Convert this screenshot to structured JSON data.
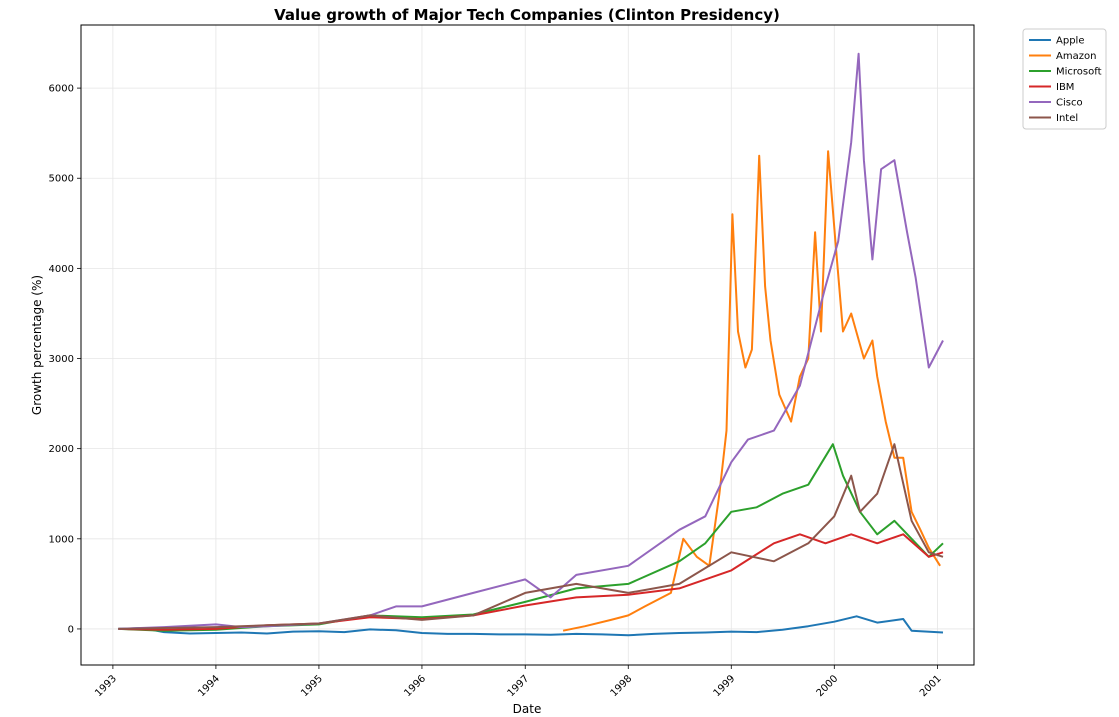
{
  "chart_data": {
    "type": "line",
    "title": "Value growth of Major Tech Companies (Clinton Presidency)",
    "xlabel": "Date",
    "ylabel": "Growth percentage (%)",
    "x_type": "date",
    "xlim": [
      "1992-09-10",
      "2001-05-10"
    ],
    "ylim": [
      -400,
      6700
    ],
    "xticks": [
      "1993-01-01",
      "1994-01-01",
      "1995-01-01",
      "1996-01-01",
      "1997-01-01",
      "1998-01-01",
      "1999-01-01",
      "2000-01-01",
      "2001-01-01"
    ],
    "xtick_labels": [
      "1993",
      "1994",
      "1995",
      "1996",
      "1997",
      "1998",
      "1999",
      "2000",
      "2001"
    ],
    "yticks": [
      0,
      1000,
      2000,
      3000,
      4000,
      5000,
      6000
    ],
    "ytick_labels": [
      "0",
      "1000",
      "2000",
      "3000",
      "4000",
      "5000",
      "6000"
    ],
    "grid": true,
    "legend_position": "outside upper right",
    "series": [
      {
        "name": "Apple",
        "color": "#1f77b4",
        "points": [
          [
            "1993-01-20",
            0
          ],
          [
            "1993-04-15",
            10
          ],
          [
            "1993-07-01",
            -35
          ],
          [
            "1993-10-01",
            -50
          ],
          [
            "1994-01-01",
            -45
          ],
          [
            "1994-04-01",
            -40
          ],
          [
            "1994-07-01",
            -50
          ],
          [
            "1994-10-01",
            -30
          ],
          [
            "1995-01-01",
            -25
          ],
          [
            "1995-04-01",
            -35
          ],
          [
            "1995-07-01",
            -5
          ],
          [
            "1995-10-01",
            -15
          ],
          [
            "1996-01-01",
            -45
          ],
          [
            "1996-04-01",
            -55
          ],
          [
            "1996-07-01",
            -55
          ],
          [
            "1996-10-01",
            -60
          ],
          [
            "1997-01-01",
            -60
          ],
          [
            "1997-04-01",
            -65
          ],
          [
            "1997-07-01",
            -55
          ],
          [
            "1997-10-01",
            -60
          ],
          [
            "1998-01-01",
            -70
          ],
          [
            "1998-04-01",
            -55
          ],
          [
            "1998-07-01",
            -45
          ],
          [
            "1998-10-01",
            -40
          ],
          [
            "1999-01-01",
            -30
          ],
          [
            "1999-04-01",
            -35
          ],
          [
            "1999-07-01",
            -10
          ],
          [
            "1999-10-01",
            30
          ],
          [
            "2000-01-01",
            80
          ],
          [
            "2000-03-20",
            140
          ],
          [
            "2000-06-01",
            70
          ],
          [
            "2000-09-01",
            110
          ],
          [
            "2000-10-01",
            -20
          ],
          [
            "2001-01-20",
            -40
          ]
        ]
      },
      {
        "name": "Amazon",
        "color": "#ff7f0e",
        "points": [
          [
            "1997-05-15",
            -20
          ],
          [
            "1997-08-01",
            30
          ],
          [
            "1997-11-01",
            100
          ],
          [
            "1998-01-01",
            150
          ],
          [
            "1998-03-01",
            250
          ],
          [
            "1998-06-01",
            400
          ],
          [
            "1998-07-15",
            1000
          ],
          [
            "1998-09-01",
            800
          ],
          [
            "1998-10-15",
            700
          ],
          [
            "1998-11-20",
            1500
          ],
          [
            "1998-12-15",
            2200
          ],
          [
            "1999-01-05",
            4600
          ],
          [
            "1999-01-25",
            3300
          ],
          [
            "1999-02-20",
            2900
          ],
          [
            "1999-03-15",
            3100
          ],
          [
            "1999-04-10",
            5250
          ],
          [
            "1999-05-01",
            3800
          ],
          [
            "1999-05-20",
            3200
          ],
          [
            "1999-06-20",
            2600
          ],
          [
            "1999-08-01",
            2300
          ],
          [
            "1999-09-01",
            2800
          ],
          [
            "1999-10-01",
            3000
          ],
          [
            "1999-10-25",
            4400
          ],
          [
            "1999-11-15",
            3300
          ],
          [
            "1999-12-10",
            5300
          ],
          [
            "2000-01-05",
            4300
          ],
          [
            "2000-02-01",
            3300
          ],
          [
            "2000-03-01",
            3500
          ],
          [
            "2000-04-15",
            3000
          ],
          [
            "2000-05-15",
            3200
          ],
          [
            "2000-06-01",
            2800
          ],
          [
            "2000-07-01",
            2300
          ],
          [
            "2000-08-01",
            1900
          ],
          [
            "2000-09-01",
            1900
          ],
          [
            "2000-10-01",
            1300
          ],
          [
            "2000-11-01",
            1100
          ],
          [
            "2000-12-01",
            900
          ],
          [
            "2001-01-10",
            700
          ]
        ]
      },
      {
        "name": "Microsoft",
        "color": "#2ca02c",
        "points": [
          [
            "1993-01-20",
            0
          ],
          [
            "1993-07-01",
            -20
          ],
          [
            "1994-01-01",
            -10
          ],
          [
            "1994-07-01",
            30
          ],
          [
            "1995-01-01",
            50
          ],
          [
            "1995-07-01",
            150
          ],
          [
            "1996-01-01",
            130
          ],
          [
            "1996-07-01",
            160
          ],
          [
            "1997-01-01",
            300
          ],
          [
            "1997-07-01",
            450
          ],
          [
            "1998-01-01",
            500
          ],
          [
            "1998-07-01",
            750
          ],
          [
            "1998-10-01",
            950
          ],
          [
            "1999-01-01",
            1300
          ],
          [
            "1999-04-01",
            1350
          ],
          [
            "1999-07-01",
            1500
          ],
          [
            "1999-10-01",
            1600
          ],
          [
            "1999-12-27",
            2050
          ],
          [
            "2000-02-01",
            1700
          ],
          [
            "2000-04-01",
            1300
          ],
          [
            "2000-06-01",
            1050
          ],
          [
            "2000-08-01",
            1200
          ],
          [
            "2000-10-01",
            1000
          ],
          [
            "2000-12-01",
            800
          ],
          [
            "2001-01-20",
            950
          ]
        ]
      },
      {
        "name": "IBM",
        "color": "#d62728",
        "points": [
          [
            "1993-01-20",
            0
          ],
          [
            "1993-07-01",
            -10
          ],
          [
            "1994-01-01",
            0
          ],
          [
            "1994-07-01",
            40
          ],
          [
            "1995-01-01",
            60
          ],
          [
            "1995-07-01",
            130
          ],
          [
            "1996-01-01",
            110
          ],
          [
            "1996-07-01",
            150
          ],
          [
            "1997-01-01",
            260
          ],
          [
            "1997-07-01",
            350
          ],
          [
            "1998-01-01",
            380
          ],
          [
            "1998-07-01",
            450
          ],
          [
            "1999-01-01",
            650
          ],
          [
            "1999-06-01",
            950
          ],
          [
            "1999-09-01",
            1050
          ],
          [
            "1999-12-01",
            950
          ],
          [
            "2000-03-01",
            1050
          ],
          [
            "2000-06-01",
            950
          ],
          [
            "2000-09-01",
            1050
          ],
          [
            "2000-12-01",
            800
          ],
          [
            "2001-01-20",
            850
          ]
        ]
      },
      {
        "name": "Cisco",
        "color": "#9467bd",
        "points": [
          [
            "1993-01-20",
            0
          ],
          [
            "1993-07-01",
            20
          ],
          [
            "1994-01-01",
            50
          ],
          [
            "1994-04-01",
            20
          ],
          [
            "1994-07-01",
            30
          ],
          [
            "1995-01-01",
            60
          ],
          [
            "1995-07-01",
            150
          ],
          [
            "1995-10-01",
            250
          ],
          [
            "1996-01-01",
            250
          ],
          [
            "1996-07-01",
            400
          ],
          [
            "1997-01-01",
            550
          ],
          [
            "1997-04-01",
            350
          ],
          [
            "1997-07-01",
            600
          ],
          [
            "1998-01-01",
            700
          ],
          [
            "1998-07-01",
            1100
          ],
          [
            "1998-10-01",
            1250
          ],
          [
            "1999-01-01",
            1850
          ],
          [
            "1999-03-01",
            2100
          ],
          [
            "1999-06-01",
            2200
          ],
          [
            "1999-09-01",
            2700
          ],
          [
            "1999-12-01",
            3800
          ],
          [
            "2000-01-15",
            4300
          ],
          [
            "2000-03-01",
            5400
          ],
          [
            "2000-03-27",
            6380
          ],
          [
            "2000-04-15",
            5200
          ],
          [
            "2000-05-15",
            4100
          ],
          [
            "2000-06-15",
            5100
          ],
          [
            "2000-08-01",
            5200
          ],
          [
            "2000-09-15",
            4400
          ],
          [
            "2000-10-15",
            3900
          ],
          [
            "2000-12-01",
            2900
          ],
          [
            "2001-01-20",
            3200
          ]
        ]
      },
      {
        "name": "Intel",
        "color": "#8c564b",
        "points": [
          [
            "1993-01-20",
            0
          ],
          [
            "1993-07-01",
            10
          ],
          [
            "1994-01-01",
            20
          ],
          [
            "1994-07-01",
            40
          ],
          [
            "1995-01-01",
            60
          ],
          [
            "1995-07-01",
            150
          ],
          [
            "1996-01-01",
            100
          ],
          [
            "1996-07-01",
            150
          ],
          [
            "1997-01-01",
            400
          ],
          [
            "1997-07-01",
            500
          ],
          [
            "1998-01-01",
            400
          ],
          [
            "1998-07-01",
            500
          ],
          [
            "1999-01-01",
            850
          ],
          [
            "1999-06-01",
            750
          ],
          [
            "1999-10-01",
            950
          ],
          [
            "2000-01-01",
            1250
          ],
          [
            "2000-03-01",
            1700
          ],
          [
            "2000-04-01",
            1300
          ],
          [
            "2000-06-01",
            1500
          ],
          [
            "2000-08-01",
            2050
          ],
          [
            "2000-10-01",
            1200
          ],
          [
            "2000-12-01",
            850
          ],
          [
            "2001-01-20",
            800
          ]
        ]
      }
    ]
  }
}
